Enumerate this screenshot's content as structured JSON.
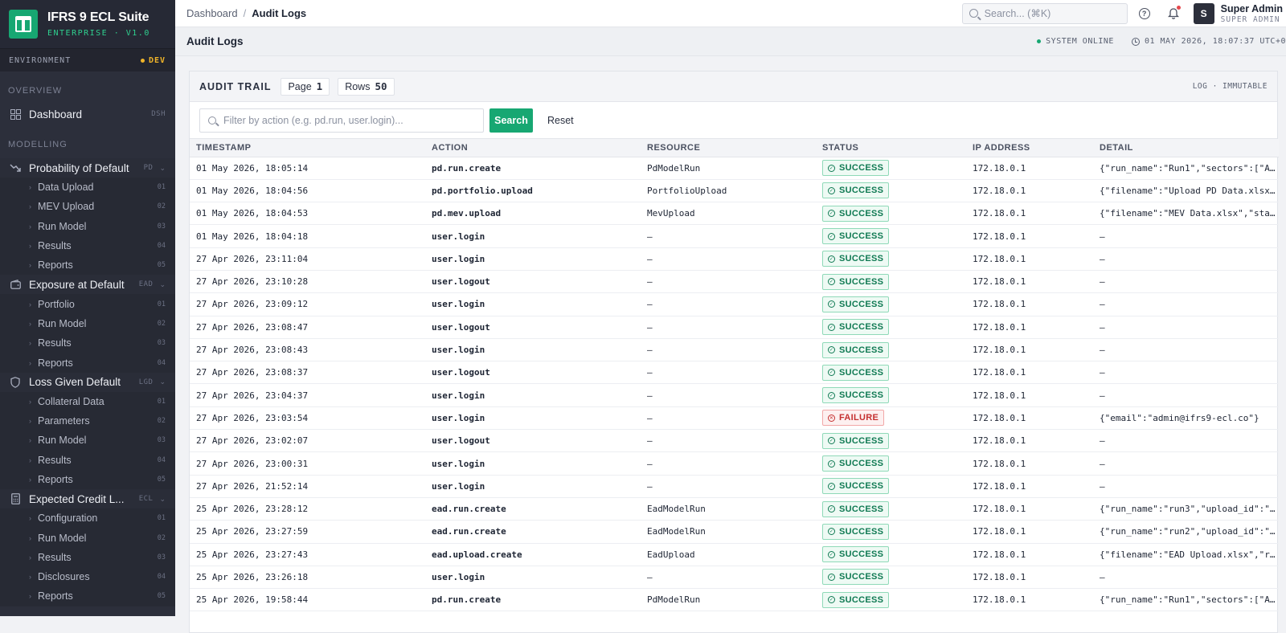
{
  "brand": {
    "name": "IFRS 9 ECL Suite",
    "subtitle": "ENTERPRISE · V1.0"
  },
  "environment": {
    "label": "ENVIRONMENT",
    "value": "DEV"
  },
  "sidebar": {
    "overview_label": "OVERVIEW",
    "dashboard": {
      "label": "Dashboard",
      "code": "DSH"
    },
    "modelling_label": "MODELLING",
    "groups": [
      {
        "label": "Probability of Default",
        "code": "PD",
        "icon": "trend-down-icon",
        "items": [
          {
            "label": "Data Upload",
            "num": "01"
          },
          {
            "label": "MEV Upload",
            "num": "02"
          },
          {
            "label": "Run Model",
            "num": "03"
          },
          {
            "label": "Results",
            "num": "04"
          },
          {
            "label": "Reports",
            "num": "05"
          }
        ]
      },
      {
        "label": "Exposure at Default",
        "code": "EAD",
        "icon": "wallet-icon",
        "items": [
          {
            "label": "Portfolio",
            "num": "01"
          },
          {
            "label": "Run Model",
            "num": "02"
          },
          {
            "label": "Results",
            "num": "03"
          },
          {
            "label": "Reports",
            "num": "04"
          }
        ]
      },
      {
        "label": "Loss Given Default",
        "code": "LGD",
        "icon": "shield-icon",
        "items": [
          {
            "label": "Collateral Data",
            "num": "01"
          },
          {
            "label": "Parameters",
            "num": "02"
          },
          {
            "label": "Run Model",
            "num": "03"
          },
          {
            "label": "Results",
            "num": "04"
          },
          {
            "label": "Reports",
            "num": "05"
          }
        ]
      },
      {
        "label": "Expected Credit L...",
        "code": "ECL",
        "icon": "calculator-icon",
        "items": [
          {
            "label": "Configuration",
            "num": "01"
          },
          {
            "label": "Run Model",
            "num": "02"
          },
          {
            "label": "Results",
            "num": "03"
          },
          {
            "label": "Disclosures",
            "num": "04"
          },
          {
            "label": "Reports",
            "num": "05"
          }
        ]
      }
    ]
  },
  "topbar": {
    "breadcrumb_root": "Dashboard",
    "breadcrumb_sep": "/",
    "breadcrumb_current": "Audit Logs",
    "search_placeholder": "Search... (⌘K)",
    "user_initial": "S",
    "user_name": "Super Admin",
    "user_role": "SUPER ADMIN"
  },
  "page": {
    "title": "Audit Logs",
    "system_status": "SYSTEM ONLINE",
    "clock": "01 MAY 2026, 18:07:37 UTC+0"
  },
  "panel": {
    "title": "AUDIT TRAIL",
    "page_label": "Page",
    "page_value": "1",
    "rows_label": "Rows",
    "rows_value": "50",
    "meta": "LOG · IMMUTABLE",
    "filter_placeholder": "Filter by action (e.g. pd.run, user.login)...",
    "search_button": "Search",
    "reset_button": "Reset"
  },
  "table": {
    "columns": [
      "TIMESTAMP",
      "ACTION",
      "RESOURCE",
      "STATUS",
      "IP ADDRESS",
      "DETAIL"
    ],
    "rows": [
      {
        "ts": "01 May 2026, 18:05:14",
        "action": "pd.run.create",
        "resource": "PdModelRun",
        "status": "SUCCESS",
        "ip": "172.18.0.1",
        "detail": "{\"run_name\":\"Run1\",\"sectors\":[\"A..."
      },
      {
        "ts": "01 May 2026, 18:04:56",
        "action": "pd.portfolio.upload",
        "resource": "PortfolioUpload",
        "status": "SUCCESS",
        "ip": "172.18.0.1",
        "detail": "{\"filename\":\"Upload PD Data.xlsx..."
      },
      {
        "ts": "01 May 2026, 18:04:53",
        "action": "pd.mev.upload",
        "resource": "MevUpload",
        "status": "SUCCESS",
        "ip": "172.18.0.1",
        "detail": "{\"filename\":\"MEV Data.xlsx\",\"sta..."
      },
      {
        "ts": "01 May 2026, 18:04:18",
        "action": "user.login",
        "resource": "—",
        "status": "SUCCESS",
        "ip": "172.18.0.1",
        "detail": "—"
      },
      {
        "ts": "27 Apr 2026, 23:11:04",
        "action": "user.login",
        "resource": "—",
        "status": "SUCCESS",
        "ip": "172.18.0.1",
        "detail": "—"
      },
      {
        "ts": "27 Apr 2026, 23:10:28",
        "action": "user.logout",
        "resource": "—",
        "status": "SUCCESS",
        "ip": "172.18.0.1",
        "detail": "—"
      },
      {
        "ts": "27 Apr 2026, 23:09:12",
        "action": "user.login",
        "resource": "—",
        "status": "SUCCESS",
        "ip": "172.18.0.1",
        "detail": "—"
      },
      {
        "ts": "27 Apr 2026, 23:08:47",
        "action": "user.logout",
        "resource": "—",
        "status": "SUCCESS",
        "ip": "172.18.0.1",
        "detail": "—"
      },
      {
        "ts": "27 Apr 2026, 23:08:43",
        "action": "user.login",
        "resource": "—",
        "status": "SUCCESS",
        "ip": "172.18.0.1",
        "detail": "—"
      },
      {
        "ts": "27 Apr 2026, 23:08:37",
        "action": "user.logout",
        "resource": "—",
        "status": "SUCCESS",
        "ip": "172.18.0.1",
        "detail": "—"
      },
      {
        "ts": "27 Apr 2026, 23:04:37",
        "action": "user.login",
        "resource": "—",
        "status": "SUCCESS",
        "ip": "172.18.0.1",
        "detail": "—"
      },
      {
        "ts": "27 Apr 2026, 23:03:54",
        "action": "user.login",
        "resource": "—",
        "status": "FAILURE",
        "ip": "172.18.0.1",
        "detail": "{\"email\":\"admin@ifrs9-ecl.co\"}"
      },
      {
        "ts": "27 Apr 2026, 23:02:07",
        "action": "user.logout",
        "resource": "—",
        "status": "SUCCESS",
        "ip": "172.18.0.1",
        "detail": "—"
      },
      {
        "ts": "27 Apr 2026, 23:00:31",
        "action": "user.login",
        "resource": "—",
        "status": "SUCCESS",
        "ip": "172.18.0.1",
        "detail": "—"
      },
      {
        "ts": "27 Apr 2026, 21:52:14",
        "action": "user.login",
        "resource": "—",
        "status": "SUCCESS",
        "ip": "172.18.0.1",
        "detail": "—"
      },
      {
        "ts": "25 Apr 2026, 23:28:12",
        "action": "ead.run.create",
        "resource": "EadModelRun",
        "status": "SUCCESS",
        "ip": "172.18.0.1",
        "detail": "{\"run_name\":\"run3\",\"upload_id\":\"..."
      },
      {
        "ts": "25 Apr 2026, 23:27:59",
        "action": "ead.run.create",
        "resource": "EadModelRun",
        "status": "SUCCESS",
        "ip": "172.18.0.1",
        "detail": "{\"run_name\":\"run2\",\"upload_id\":\"..."
      },
      {
        "ts": "25 Apr 2026, 23:27:43",
        "action": "ead.upload.create",
        "resource": "EadUpload",
        "status": "SUCCESS",
        "ip": "172.18.0.1",
        "detail": "{\"filename\":\"EAD Upload.xlsx\",\"r..."
      },
      {
        "ts": "25 Apr 2026, 23:26:18",
        "action": "user.login",
        "resource": "—",
        "status": "SUCCESS",
        "ip": "172.18.0.1",
        "detail": "—"
      },
      {
        "ts": "25 Apr 2026, 19:58:44",
        "action": "pd.run.create",
        "resource": "PdModelRun",
        "status": "SUCCESS",
        "ip": "172.18.0.1",
        "detail": "{\"run_name\":\"Run1\",\"sectors\":[\"A..."
      }
    ]
  },
  "colors": {
    "accent": "#17a772",
    "sidebar": "#2c2f3b",
    "success": "#107a53",
    "failure": "#c53030",
    "env": "#f0b429"
  }
}
